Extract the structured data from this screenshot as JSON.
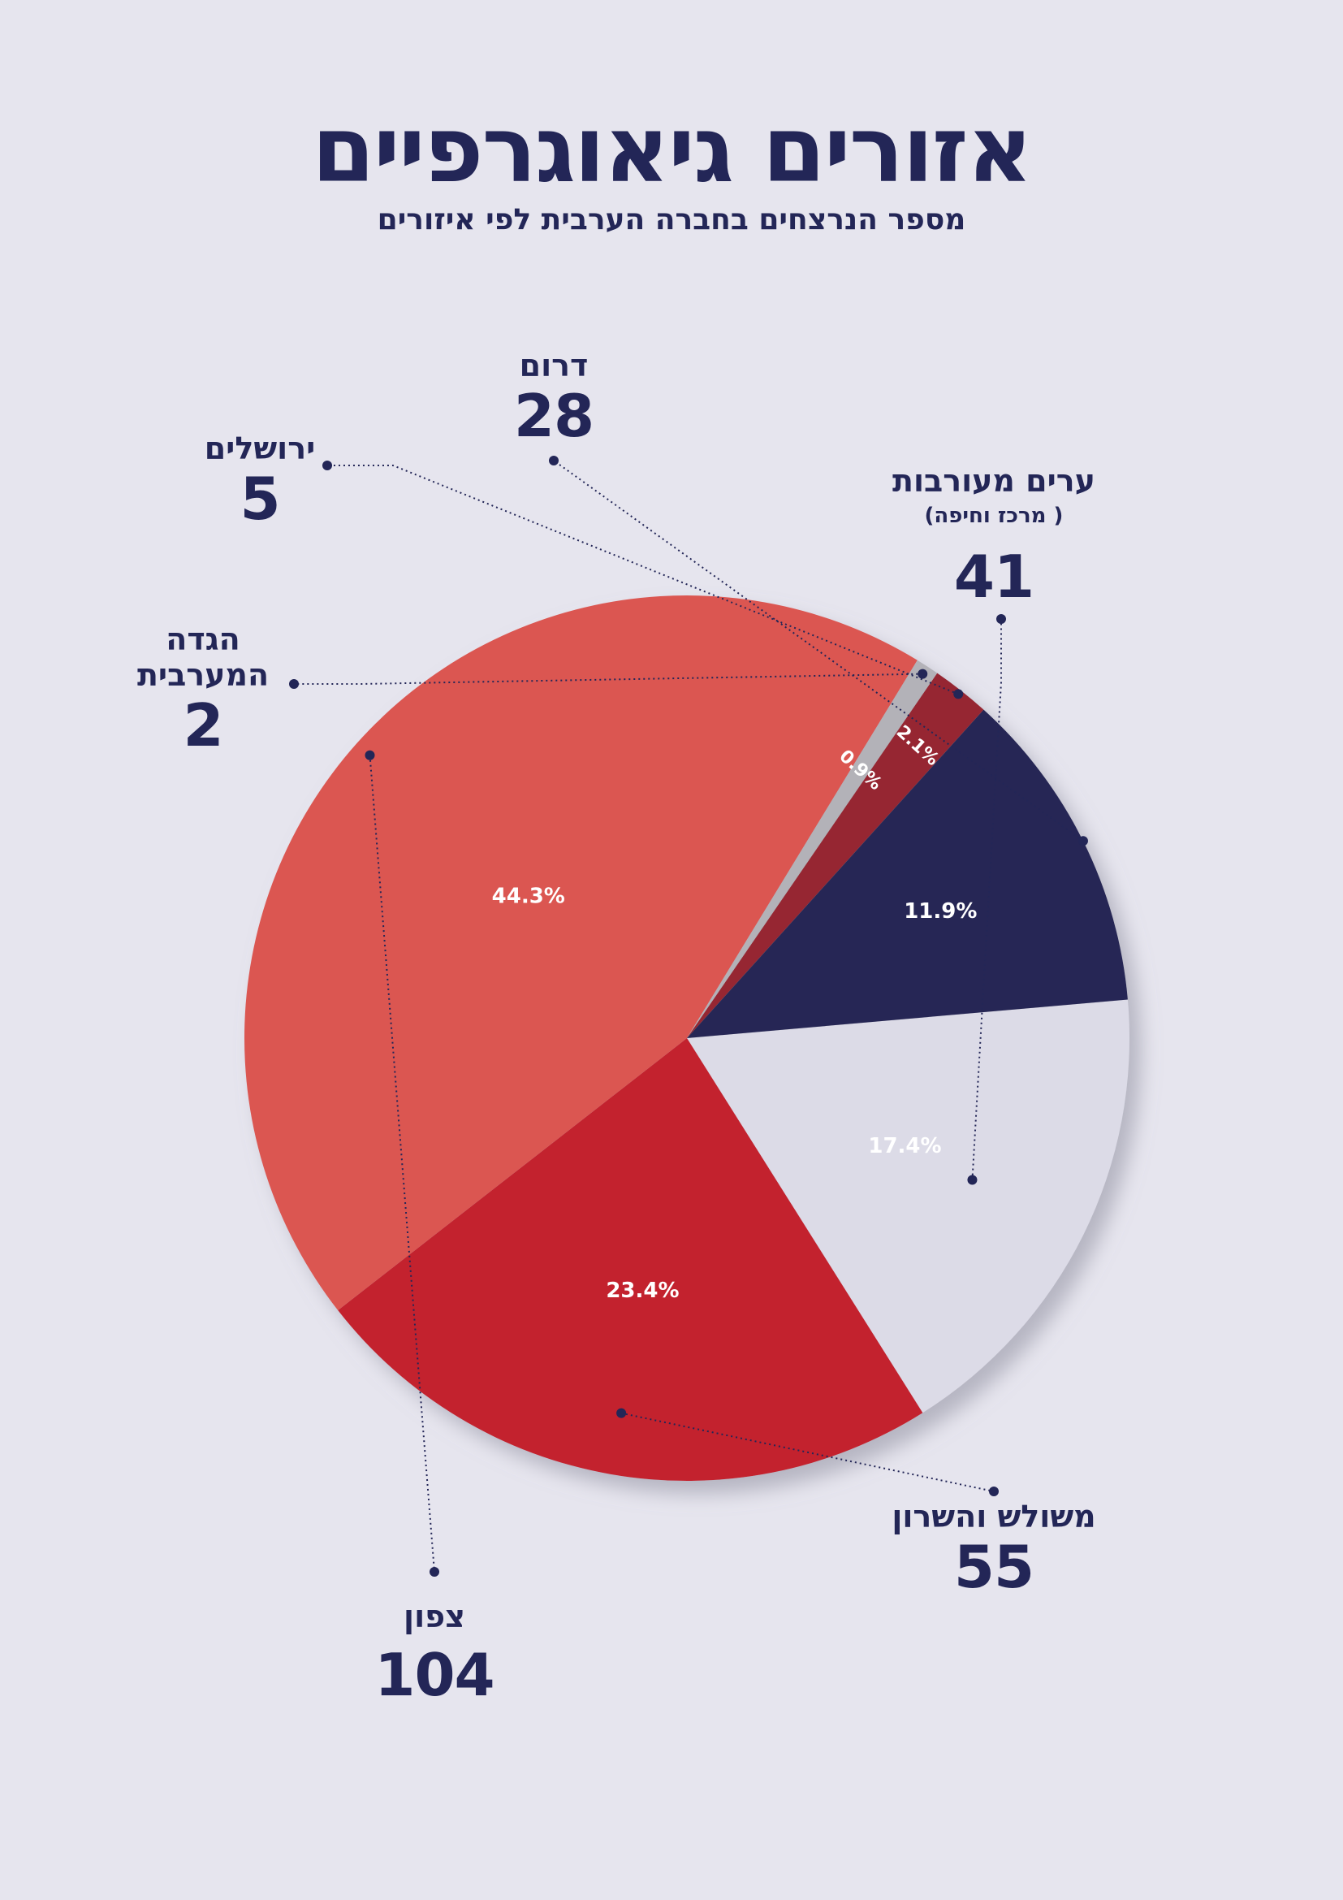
{
  "header": {
    "title": "אזורים גיאוגרפיים",
    "subtitle": "מספר הנרצחים בחברה הערבית לפי איזורים"
  },
  "chart_data": {
    "type": "pie",
    "title": "אזורים גיאוגרפיים",
    "subtitle": "מספר הנרצחים בחברה הערבית לפי איזורים",
    "slices": [
      {
        "key": "mixed",
        "label": "ערים מעורבות",
        "note": "( מרכז וחיפה)",
        "value": 41,
        "percent_label": "17.4%",
        "color": "#dcdbe7"
      },
      {
        "key": "triangle",
        "label": "משולש והשרון",
        "value": 55,
        "percent_label": "23.4%",
        "color": "#c3232f"
      },
      {
        "key": "north",
        "label": "צפון",
        "value": 104,
        "percent_label": "44.3%",
        "color": "#db5651"
      },
      {
        "key": "westbank",
        "label": "הגדה המערבית",
        "value": 2,
        "percent_label": "0.9%",
        "color": "#b3b2b8"
      },
      {
        "key": "jerusalem",
        "label": "ירושלים",
        "value": 5,
        "percent_label": "2.1%",
        "color": "#962630"
      },
      {
        "key": "south",
        "label": "דרום",
        "value": 28,
        "percent_label": "11.9%",
        "color": "#252654"
      }
    ]
  },
  "colors": {
    "background": "#e6e5ee",
    "text": "#232657",
    "leader": "#232657"
  }
}
